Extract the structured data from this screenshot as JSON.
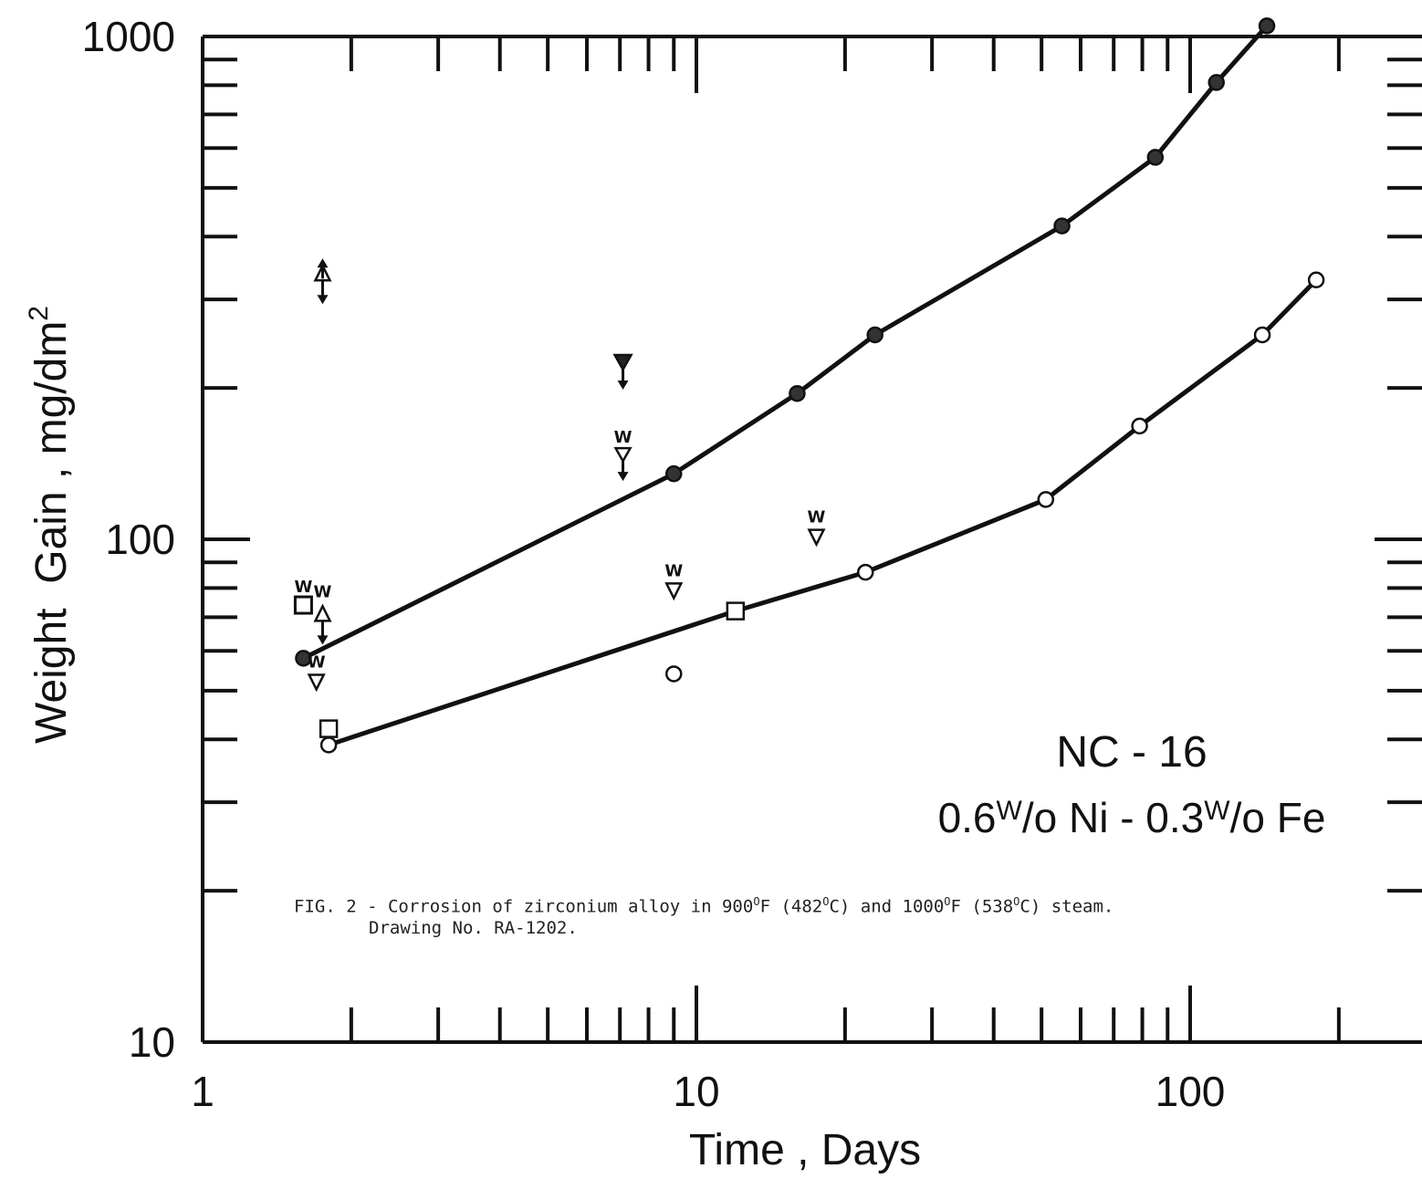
{
  "chart_data": {
    "type": "scatter",
    "x_scale": "log",
    "y_scale": "log",
    "xlim": [
      1,
      300
    ],
    "ylim": [
      10,
      1000
    ],
    "grid": false,
    "xlabel": "Time , Days",
    "ylabel": "Weight  Gain , mg/dm",
    "ylabel_superscript": "2",
    "x_tick_labels": [
      {
        "value": 1,
        "label": "1"
      },
      {
        "value": 10,
        "label": "10"
      },
      {
        "value": 100,
        "label": "100"
      }
    ],
    "y_tick_labels": [
      {
        "value": 10,
        "label": "10"
      },
      {
        "value": 100,
        "label": "100"
      },
      {
        "value": 1000,
        "label": "1000"
      }
    ],
    "annotation": {
      "line1": "NC - 16",
      "line2_a": "0.6",
      "line2_b": "W",
      "line2_c": "/o Ni - 0.3",
      "line2_d": "W",
      "line2_e": "/o Fe"
    },
    "marker_letter": "W",
    "series": [
      {
        "fill": "filled",
        "symbol": "circle",
        "connected": true,
        "points": [
          [
            1.6,
            58
          ],
          [
            9,
            135
          ],
          [
            16,
            195
          ],
          [
            23,
            255
          ],
          [
            55,
            420
          ],
          [
            85,
            575
          ],
          [
            113,
            810
          ],
          [
            143,
            1050
          ]
        ]
      },
      {
        "fill": "open",
        "symbol": "circle",
        "connected": true,
        "points": [
          [
            1.8,
            39
          ],
          [
            12,
            72
          ],
          [
            22,
            86
          ],
          [
            51,
            120
          ],
          [
            79,
            168
          ],
          [
            140,
            255
          ],
          [
            180,
            328
          ]
        ]
      },
      {
        "fill": "open",
        "symbol": "circle",
        "connected": false,
        "points": [
          [
            9,
            54
          ]
        ]
      },
      {
        "fill": "open",
        "symbol": "square",
        "connected": false,
        "points": [
          [
            1.8,
            42
          ],
          [
            12,
            72
          ]
        ]
      },
      {
        "fill": "open",
        "symbol": "square-w",
        "connected": false,
        "points": [
          [
            1.6,
            74
          ]
        ]
      },
      {
        "fill": "open",
        "symbol": "triangle-up-arrow-down",
        "connected": false,
        "points": [
          [
            1.75,
            70
          ]
        ]
      },
      {
        "fill": "open",
        "symbol": "triangle-up-double-arrow",
        "connected": false,
        "points": [
          [
            1.75,
            330
          ]
        ]
      },
      {
        "fill": "filled",
        "symbol": "triangle-down-arrow-down",
        "connected": false,
        "points": [
          [
            7.1,
            225
          ]
        ]
      },
      {
        "fill": "open",
        "symbol": "triangle-down-w-arrow-down",
        "connected": false,
        "points": [
          [
            7.1,
            148
          ]
        ]
      },
      {
        "fill": "open",
        "symbol": "triangle-down-w",
        "connected": false,
        "points": [
          [
            1.7,
            52
          ],
          [
            9,
            79
          ],
          [
            17.5,
            101
          ]
        ]
      }
    ]
  },
  "caption": {
    "line1_prefix": "FIG. 2 - Corrosion of zirconium alloy in 900",
    "deg1": "O",
    "line1_mid1": "F (482",
    "deg2": "O",
    "line1_mid2": "C) and 1000",
    "deg3": "O",
    "line1_mid3": "F (538",
    "deg4": "O",
    "line1_suffix": "C) steam.",
    "line2": "Drawing No. RA-1202."
  }
}
